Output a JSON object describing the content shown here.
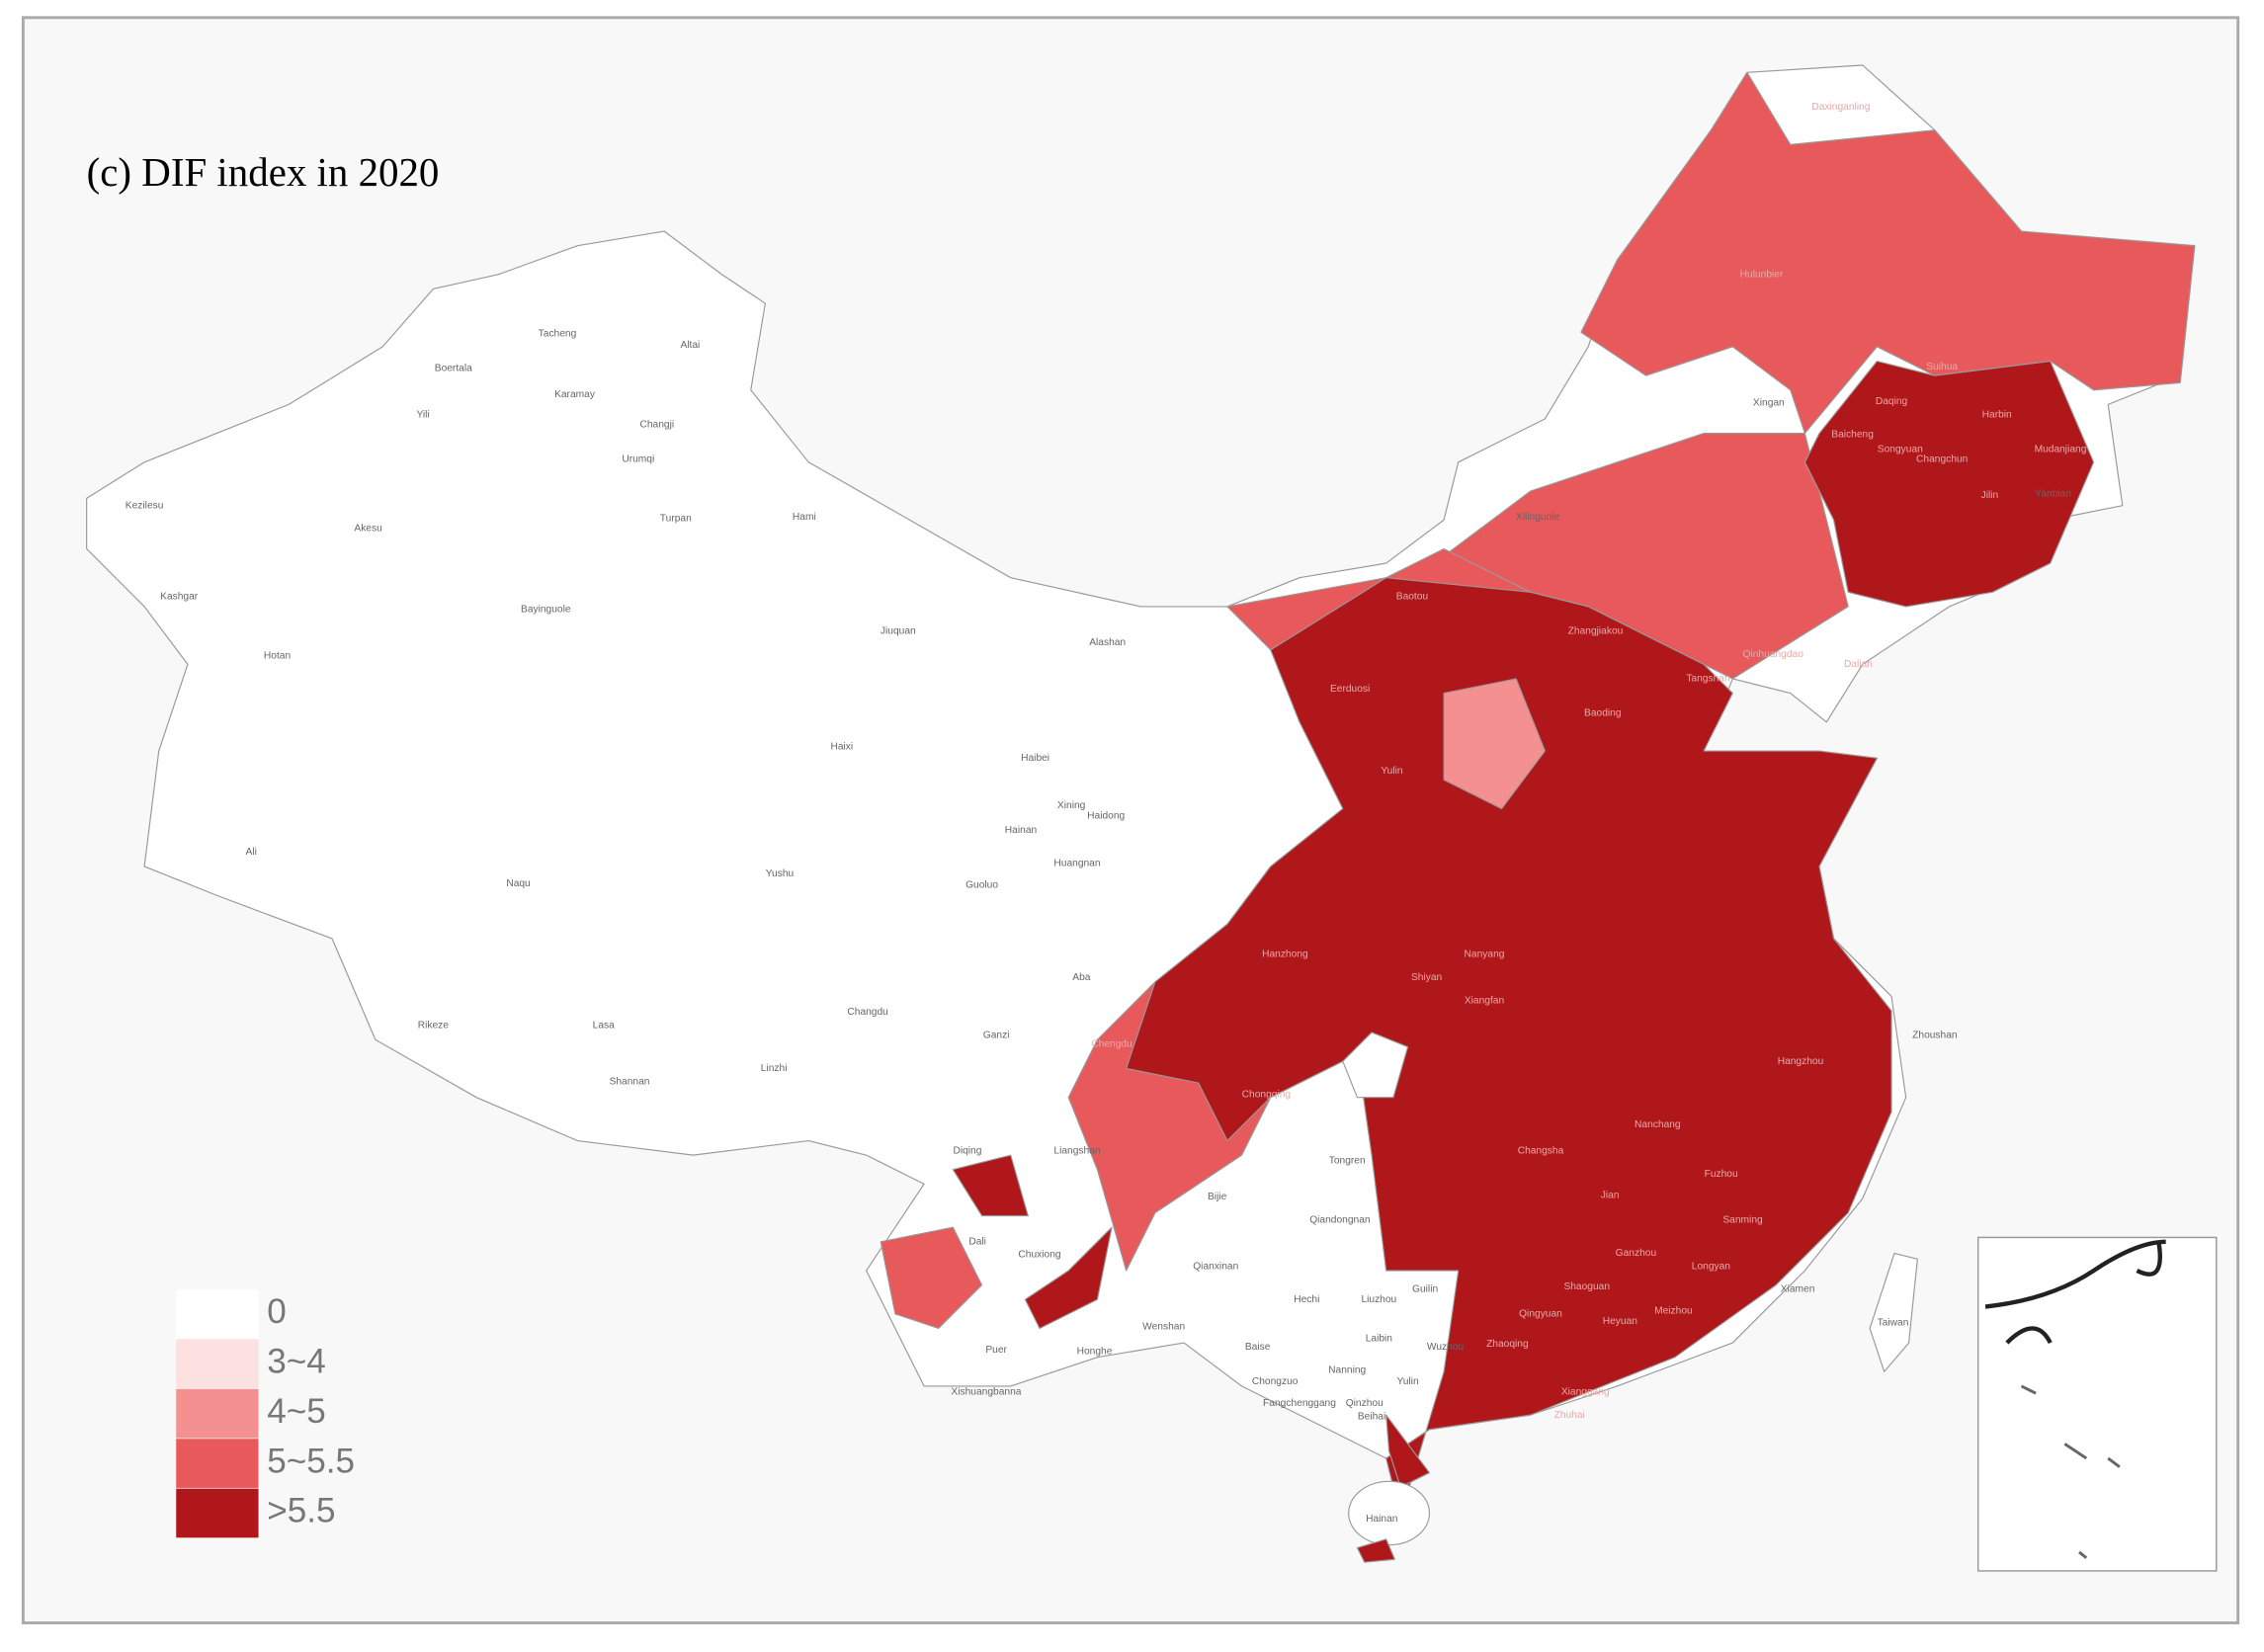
{
  "title": "(c) DIF index in 2020",
  "legend": [
    {
      "label": "0",
      "color": "#ffffff"
    },
    {
      "label": "3~4",
      "color": "#fde0e0"
    },
    {
      "label": "4~5",
      "color": "#f4908f"
    },
    {
      "label": "5~5.5",
      "color": "#e8595c"
    },
    {
      "label": ">5.5",
      "color": "#b0171b"
    }
  ],
  "places": [
    "Daxinganling",
    "Hulunbier",
    "Suihua",
    "Xingan",
    "Harbin",
    "Mudanjiang",
    "Yanbian",
    "Xilinguole",
    "Baicheng",
    "Changchun",
    "Jilin",
    "Daqing",
    "Songyuan",
    "Baotou",
    "Zhangjiakou",
    "Qinhuangdao",
    "Eerduosi",
    "Dalian",
    "Baoding",
    "Tangshan",
    "Tacheng",
    "Altai",
    "Boertala",
    "Karamay",
    "Yili",
    "Changji",
    "Urumqi",
    "Kezilesu",
    "Akesu",
    "Turpan",
    "Hami",
    "Kashgar",
    "Bayinguole",
    "Hotan",
    "Jiuquan",
    "Alashan",
    "Haixi",
    "Haibei",
    "Xining",
    "Haidong",
    "Hainan",
    "Huangnan",
    "Guoluo",
    "Ali",
    "Naqu",
    "Yushu",
    "Aba",
    "Changdu",
    "Ganzi",
    "Rikeze",
    "Lasa",
    "Linzhi",
    "Shannan",
    "Liangshan",
    "Diqing",
    "Dali",
    "Chuxiong",
    "Bijie",
    "Tongren",
    "Qiandongnan",
    "Qianxinan",
    "Hechi",
    "Guilin",
    "Liuzhou",
    "Wenshan",
    "Honghe",
    "Puer",
    "Xishuangbanna",
    "Baise",
    "Nanning",
    "Chongzuo",
    "Laibin",
    "Yulin",
    "Wuzhou",
    "Fangchenggang",
    "Qinzhou",
    "Beihai",
    "Hainan",
    "Taiwan",
    "Zhoushan",
    "Xiamen",
    "Chongqing",
    "Chengdu",
    "Hanzhong",
    "Yulin",
    "Shiyan",
    "Nanyang",
    "Xiangfan",
    "Fuzhou",
    "Ganzhou",
    "Shaoguan",
    "Longyan",
    "Changsha",
    "Nanchang",
    "Hangzhou",
    "Jian",
    "Sanming",
    "Heyuan",
    "Meizhou",
    "Qingyuan",
    "Zhaoqing",
    "Xianggang",
    "Zhuhai"
  ]
}
